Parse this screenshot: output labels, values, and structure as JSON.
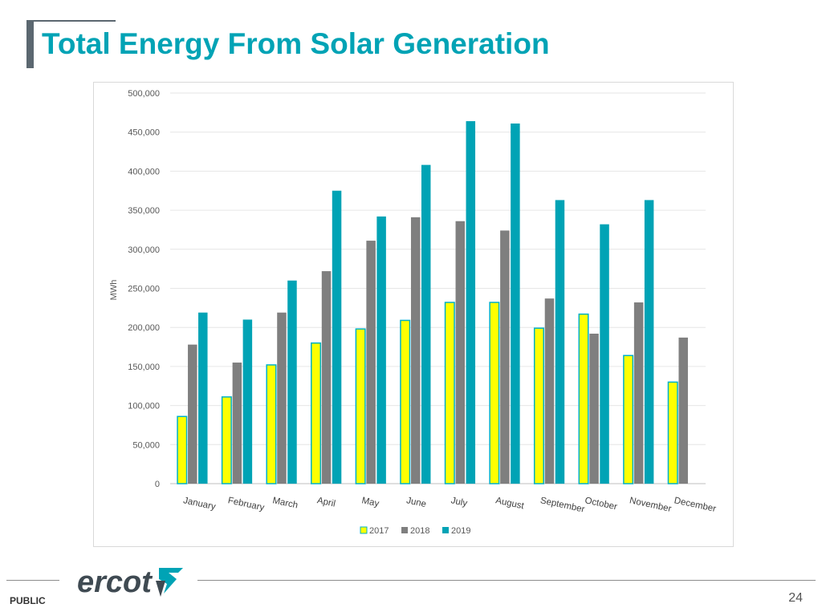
{
  "page": {
    "title": "Total Energy From Solar Generation",
    "classification": "PUBLIC",
    "page_number": "24",
    "logo_text": "ercot"
  },
  "colors": {
    "title": "#00a3b5",
    "accent_bar": "#5b6770",
    "series_2017_fill": "#ffff00",
    "series_2017_stroke": "#00b0c8",
    "series_2018": "#7f7f7f",
    "series_2019": "#00a3b5",
    "logo": "#3f4a52"
  },
  "chart_data": {
    "type": "bar",
    "title": "",
    "xlabel": "",
    "ylabel": "MWh",
    "ylim": [
      0,
      500000
    ],
    "yticks": [
      0,
      50000,
      100000,
      150000,
      200000,
      250000,
      300000,
      350000,
      400000,
      450000,
      500000
    ],
    "ytick_labels": [
      "0",
      "50,000",
      "100,000",
      "150,000",
      "200,000",
      "250,000",
      "300,000",
      "350,000",
      "400,000",
      "450,000",
      "500,000"
    ],
    "grid": true,
    "legend_position": "bottom",
    "categories": [
      "January",
      "February",
      "March",
      "April",
      "May",
      "June",
      "July",
      "August",
      "September",
      "October",
      "November",
      "December"
    ],
    "series": [
      {
        "name": "2017",
        "values": [
          86000,
          111000,
          152000,
          180000,
          198000,
          209000,
          232000,
          232000,
          199000,
          217000,
          164000,
          130000
        ]
      },
      {
        "name": "2018",
        "values": [
          178000,
          155000,
          219000,
          272000,
          311000,
          341000,
          336000,
          324000,
          237000,
          192000,
          232000,
          187000
        ]
      },
      {
        "name": "2019",
        "values": [
          219000,
          210000,
          260000,
          375000,
          342000,
          408000,
          464000,
          461000,
          363000,
          332000,
          363000,
          null
        ]
      }
    ]
  }
}
